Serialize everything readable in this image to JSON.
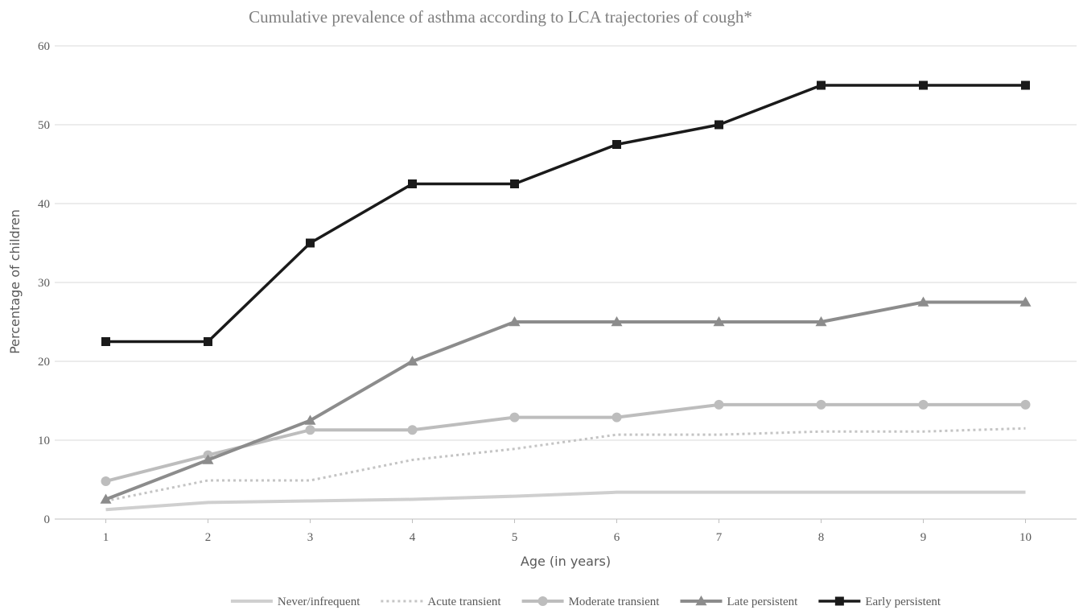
{
  "chart_data": {
    "type": "line",
    "title": "Cumulative prevalence of asthma according to LCA trajectories of cough*",
    "xlabel": "Age (in years)",
    "ylabel": "Percentage of children",
    "x": [
      1,
      2,
      3,
      4,
      5,
      6,
      7,
      8,
      9,
      10
    ],
    "x_tick_labels": [
      "1",
      "2",
      "3",
      "4",
      "5",
      "6",
      "7",
      "8",
      "9",
      "10"
    ],
    "ylim": [
      0,
      60
    ],
    "y_ticks": [
      0,
      10,
      20,
      30,
      40,
      50,
      60
    ],
    "grid": true,
    "legend_position": "bottom",
    "series": [
      {
        "name": "Never/infrequent",
        "color": "#cfcfcf",
        "dash": "solid",
        "marker": "none",
        "values": [
          1.2,
          2.1,
          2.3,
          2.5,
          2.9,
          3.4,
          3.4,
          3.4,
          3.4,
          3.4
        ]
      },
      {
        "name": "Acute transient",
        "color": "#c4c4c4",
        "dash": "dotted",
        "marker": "none",
        "values": [
          2.3,
          4.9,
          4.9,
          7.5,
          8.9,
          10.7,
          10.7,
          11.1,
          11.1,
          11.5
        ]
      },
      {
        "name": "Moderate transient",
        "color": "#bdbdbd",
        "dash": "solid",
        "marker": "circle",
        "values": [
          4.8,
          8.1,
          11.3,
          11.3,
          12.9,
          12.9,
          14.5,
          14.5,
          14.5,
          14.5
        ]
      },
      {
        "name": "Late persistent",
        "color": "#8c8c8c",
        "dash": "solid",
        "marker": "triangle",
        "values": [
          2.5,
          7.5,
          12.5,
          20,
          25,
          25,
          25,
          25,
          27.5,
          27.5
        ]
      },
      {
        "name": "Early persistent",
        "color": "#1a1a1a",
        "dash": "solid",
        "marker": "square",
        "values": [
          22.5,
          22.5,
          35,
          42.5,
          42.5,
          47.5,
          50,
          55,
          55,
          55
        ]
      }
    ]
  }
}
